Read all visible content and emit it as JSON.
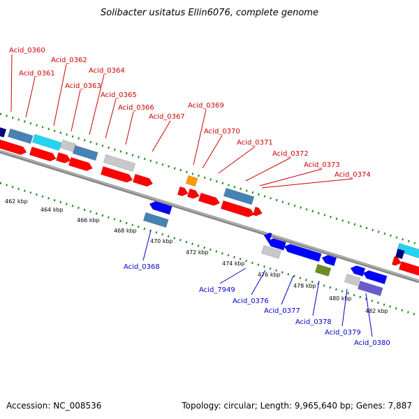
{
  "title": "Solibacter usitatus Ellin6076, complete genome",
  "footer": {
    "accession": "Accession: NC_008536",
    "summary": "Topology: circular; Length: 9,965,640 bp; Genes: 7,887"
  },
  "colors": {
    "forward_label": "#cc0000",
    "reverse_label": "#0000cc",
    "gene_red": "#ff0000",
    "gene_blue": "#0000ff",
    "gene_light_blue": "#4682b4",
    "gene_cyan": "#22d4f0",
    "gene_gray": "#c8c8c8",
    "gene_orange": "#ff9900",
    "gene_olive": "#6b8e23",
    "gene_purple": "#6a5acd",
    "gene_navy": "#000080",
    "tick_green": "#228b22",
    "backbone": "#888888"
  },
  "forward_tags": [
    "Acid_0360",
    "Acid_0361",
    "Acid_0362",
    "Acid_0363",
    "Acid_0364",
    "Acid_0365",
    "Acid_0366",
    "Acid_0367",
    "Acid_0369",
    "Acid_0370",
    "Acid_0371",
    "Acid_0372",
    "Acid_0373",
    "Acid_0374"
  ],
  "reverse_tags": [
    "Acid_0368",
    "Acid_7949",
    "Acid_0376",
    "Acid_0377",
    "Acid_0378",
    "Acid_0379",
    "Acid_0380"
  ],
  "kbp_ticks": [
    "462 kbp",
    "464 kbp",
    "466 kbp",
    "468 kbp",
    "470 kbp",
    "472 kbp",
    "474 kbp",
    "476 kbp",
    "478 kbp",
    "480 kbp",
    "482 kbp"
  ]
}
